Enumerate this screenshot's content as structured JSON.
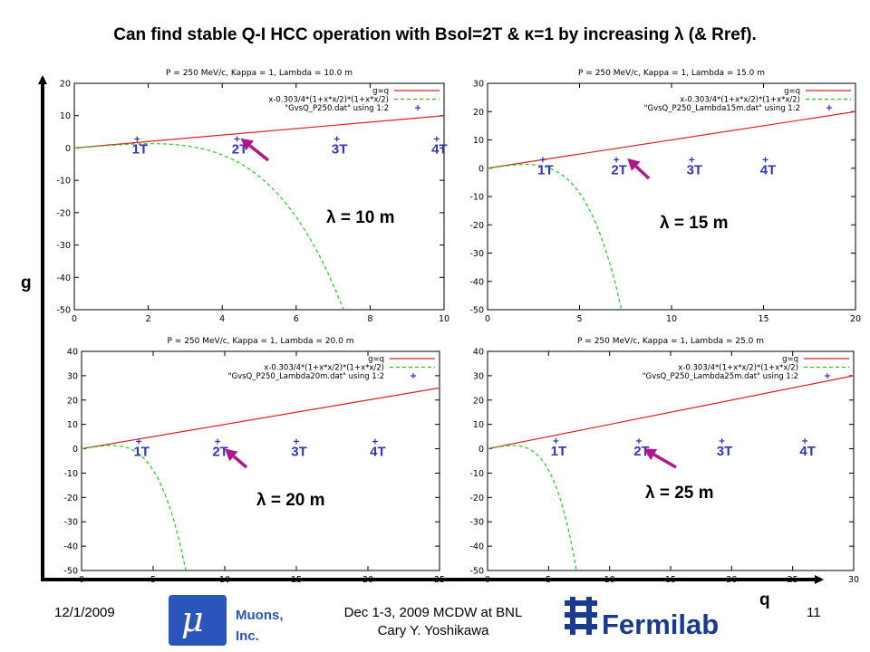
{
  "title": "Can find stable Q-I HCC operation with Bsol=2T & κ=1 by increasing λ (& Rref).",
  "y_axis_label": "g",
  "x_axis_label": "q",
  "footer": {
    "date": "12/1/2009",
    "event_line1": "Dec 1-3, 2009 MCDW at BNL",
    "event_line2": "Cary Y. Yoshikawa",
    "page": "11",
    "muons_symbol": "μ",
    "muons_line1": "Muons,",
    "muons_line2": "Inc.",
    "fermilab": "Fermilab"
  },
  "colors": {
    "line_gq": "#e02020",
    "curve": "#22cc22",
    "points": "#2a2acc",
    "arrow": "#b0178c",
    "labels": "#3333bb"
  },
  "chart_data": [
    {
      "type": "line",
      "title": "P = 250 MeV/c, Kappa = 1, Lambda = 10.0 m",
      "lambda_label": "λ = 10 m",
      "xlim": [
        0,
        10
      ],
      "ylim": [
        -50,
        20
      ],
      "xticks": [
        0,
        2,
        4,
        6,
        8,
        10
      ],
      "yticks": [
        -50,
        -40,
        -30,
        -20,
        -10,
        0,
        10,
        20
      ],
      "legend": [
        "g=q",
        "x-0.303/4*(1+x*x/2)*(1+x*x/2)",
        "\"GvsQ_P250.dat\" using 1:2"
      ],
      "series": [
        {
          "name": "g=q",
          "fn": "identity"
        },
        {
          "name": "x-0.303/4*(1+x*x/2)*(1+x*x/2)",
          "fn": "quartic"
        },
        {
          "name": "\"GvsQ_P250.dat\" using 1:2",
          "points": [
            {
              "x": 1.7,
              "y": 2.8
            },
            {
              "x": 4.4,
              "y": 2.8
            },
            {
              "x": 7.1,
              "y": 2.8
            },
            {
              "x": 9.8,
              "y": 2.8
            }
          ]
        }
      ],
      "point_labels": [
        "1T",
        "2T",
        "3T",
        "4T"
      ],
      "arrow_to": {
        "x": 4.5,
        "y": 3.0
      }
    },
    {
      "type": "line",
      "title": "P = 250 MeV/c, Kappa = 1, Lambda = 15.0 m",
      "lambda_label": "λ = 15 m",
      "xlim": [
        0,
        20
      ],
      "ylim": [
        -50,
        30
      ],
      "xticks": [
        0,
        5,
        10,
        15,
        20
      ],
      "yticks": [
        -50,
        -40,
        -30,
        -20,
        -10,
        0,
        10,
        20,
        30
      ],
      "legend": [
        "g=q",
        "x-0.303/4*(1+x*x/2)*(1+x*x/2)",
        "\"GvsQ_P250_Lambda15m.dat\" using 1:2"
      ],
      "series": [
        {
          "name": "g=q",
          "fn": "identity"
        },
        {
          "name": "x-0.303/4*(1+x*x/2)*(1+x*x/2)",
          "fn": "quartic"
        },
        {
          "name": "\"GvsQ_P250_Lambda15m.dat\" using 1:2",
          "points": [
            {
              "x": 3.0,
              "y": 3.0
            },
            {
              "x": 7.0,
              "y": 3.0
            },
            {
              "x": 11.1,
              "y": 3.0
            },
            {
              "x": 15.1,
              "y": 3.0
            }
          ]
        }
      ],
      "point_labels": [
        "1T",
        "2T",
        "3T",
        "4T"
      ],
      "arrow_to": {
        "x": 7.6,
        "y": 3.5
      }
    },
    {
      "type": "line",
      "title": "P = 250 MeV/c, Kappa = 1, Lambda = 20.0 m",
      "lambda_label": "λ = 20 m",
      "xlim": [
        0,
        25
      ],
      "ylim": [
        -50,
        40
      ],
      "xticks": [
        0,
        5,
        10,
        15,
        20,
        25
      ],
      "yticks": [
        -50,
        -40,
        -30,
        -20,
        -10,
        0,
        10,
        20,
        30,
        40
      ],
      "legend": [
        "g=q",
        "x-0.303/4*(1+x*x/2)*(1+x*x/2)",
        "\"GvsQ_P250_Lambda20m.dat\" using 1:2"
      ],
      "series": [
        {
          "name": "g=q",
          "fn": "identity"
        },
        {
          "name": "x-0.303/4*(1+x*x/2)*(1+x*x/2)",
          "fn": "quartic"
        },
        {
          "name": "\"GvsQ_P250_Lambda20m.dat\" using 1:2",
          "points": [
            {
              "x": 4.0,
              "y": 3.0
            },
            {
              "x": 9.5,
              "y": 3.0
            },
            {
              "x": 15.0,
              "y": 3.0
            },
            {
              "x": 20.5,
              "y": 3.0
            }
          ]
        }
      ],
      "point_labels": [
        "1T",
        "2T",
        "3T",
        "4T"
      ],
      "arrow_to": {
        "x": 10.0,
        "y": 0.0
      }
    },
    {
      "type": "line",
      "title": "P = 250 MeV/c, Kappa = 1, Lambda = 25.0 m",
      "lambda_label": "λ = 25 m",
      "xlim": [
        0,
        30
      ],
      "ylim": [
        -50,
        40
      ],
      "xticks": [
        0,
        5,
        10,
        15,
        20,
        25,
        30
      ],
      "yticks": [
        -50,
        -40,
        -30,
        -20,
        -10,
        0,
        10,
        20,
        30,
        40
      ],
      "legend": [
        "g=q",
        "x-0.303/4*(1+x*x/2)*(1+x*x/2)",
        "\"GvsQ_P250_Lambda25m.dat\" using 1:2"
      ],
      "series": [
        {
          "name": "g=q",
          "fn": "identity"
        },
        {
          "name": "x-0.303/4*(1+x*x/2)*(1+x*x/2)",
          "fn": "quartic"
        },
        {
          "name": "\"GvsQ_P250_Lambda25m.dat\" using 1:2",
          "points": [
            {
              "x": 5.6,
              "y": 3.2
            },
            {
              "x": 12.4,
              "y": 3.2
            },
            {
              "x": 19.2,
              "y": 3.2
            },
            {
              "x": 26.0,
              "y": 3.2
            }
          ]
        }
      ],
      "point_labels": [
        "1T",
        "2T",
        "3T",
        "4T"
      ],
      "arrow_to": {
        "x": 12.8,
        "y": 0.0
      }
    }
  ]
}
